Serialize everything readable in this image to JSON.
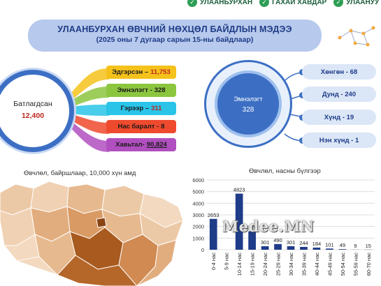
{
  "top_tags": [
    "УЛААНБУРХАН",
    "ГАХАЙ ХАВДАР",
    "УЛААНУУ"
  ],
  "header": {
    "title": "УЛААНБУРХАН ӨВЧНИЙ НӨХЦӨЛ БАЙДЛЫН МЭДЭЭ",
    "subtitle": "(2025 оны 7 дугаар сарын 15-ны байдлаар)"
  },
  "confirmed": {
    "label": "Батлагдсан",
    "value": "12,400"
  },
  "breakdown": [
    {
      "label": "Эдгэрсэн –",
      "value": "11,753",
      "color": "#f4c21b"
    },
    {
      "label": "Эмнэлэгт -",
      "value": "328",
      "color": "#8cc63f"
    },
    {
      "label": "Гэрээр –",
      "value": "311",
      "color": "#29c4e8"
    },
    {
      "label": "Нас баралт -",
      "value": "8",
      "color": "#ef4a2e"
    },
    {
      "label": "Хавьтал-",
      "value": "90,824",
      "color": "#b04fbf"
    }
  ],
  "hospital": {
    "label": "Эмнэлэгт",
    "value": "328"
  },
  "severity": [
    {
      "label": "Хөнгөн - 68"
    },
    {
      "label": "Дунд - 240"
    },
    {
      "label": "Хүнд - 19"
    },
    {
      "label": "Нэн хүнд - 1"
    }
  ],
  "map": {
    "title": "Өвчлөл, байршлаар, 10,000 хүн амд"
  },
  "chart_data": {
    "type": "bar",
    "title": "Өвчлөл, насны бүлгээр",
    "categories": [
      "0-4 нас",
      "5-9 нас",
      "10-14 нас",
      "15-19 нас",
      "20-24 нас",
      "25-29 нас",
      "30-34 нас",
      "35-39 нас",
      "40-44 нас",
      "45-49 нас",
      "50-54 нас",
      "55-59 нас",
      "60-70 нас"
    ],
    "values": [
      2653,
      0,
      4823,
      1589,
      301,
      490,
      301,
      244,
      184,
      101,
      49,
      9,
      15
    ],
    "value_labels": [
      "2653",
      "",
      "4823",
      "1589",
      "301",
      "490",
      "301",
      "244",
      "184",
      "101",
      "49",
      "9",
      "15"
    ],
    "ylim": [
      0,
      6000
    ],
    "yticks": [
      "0",
      "1000",
      "2000",
      "3000",
      "4000",
      "5000",
      "6000"
    ],
    "grid": true,
    "bar_color": "#1f3c88"
  },
  "watermark": "Medee.MN"
}
